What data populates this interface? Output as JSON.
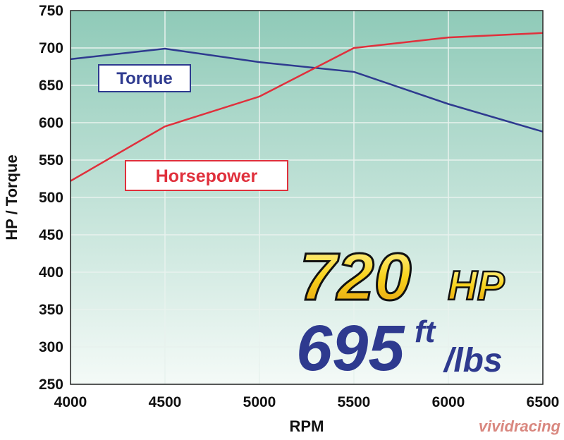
{
  "chart_data": {
    "type": "line",
    "x": [
      4000,
      4500,
      5000,
      5500,
      6000,
      6500
    ],
    "xlim": [
      4000,
      6500
    ],
    "xticks": [
      4000,
      4500,
      5000,
      5500,
      6000,
      6500
    ],
    "ylim": [
      250,
      750
    ],
    "yticks": [
      250,
      300,
      350,
      400,
      450,
      500,
      550,
      600,
      650,
      700,
      750
    ],
    "xlabel": "RPM",
    "ylabel": "HP / Torque",
    "grid": true,
    "series": [
      {
        "name": "Torque",
        "color": "#2e3a8f",
        "values": [
          685,
          699,
          681,
          668,
          625,
          588
        ]
      },
      {
        "name": "Horsepower",
        "color": "#e0303c",
        "values": [
          522,
          595,
          635,
          700,
          714,
          720
        ]
      }
    ],
    "annotations": {
      "hp_number": "720",
      "hp_unit": "HP",
      "torque_number": "695",
      "torque_unit_top": "ft",
      "torque_unit_bottom": "/lbs"
    },
    "watermark": "vividracing"
  }
}
